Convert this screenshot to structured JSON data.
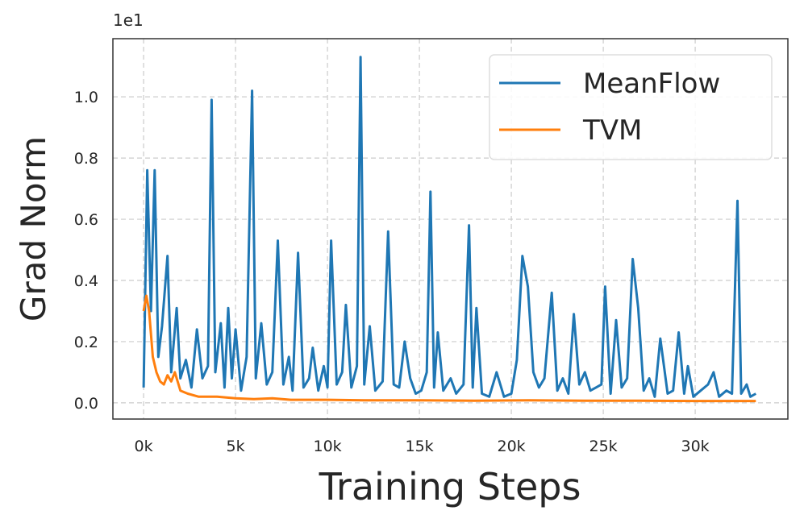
{
  "chart_data": {
    "type": "line",
    "xlabel": "Training Steps",
    "ylabel": "Grad Norm",
    "y_offset_label": "1e1",
    "xlim": [
      -1670,
      35040
    ],
    "ylim": [
      -0.053,
      1.19
    ],
    "xticks": [
      {
        "value": 0,
        "label": "0k"
      },
      {
        "value": 5000,
        "label": "5k"
      },
      {
        "value": 10000,
        "label": "10k"
      },
      {
        "value": 15000,
        "label": "15k"
      },
      {
        "value": 20000,
        "label": "20k"
      },
      {
        "value": 25000,
        "label": "25k"
      },
      {
        "value": 30000,
        "label": "30k"
      }
    ],
    "yticks": [
      {
        "value": 0,
        "label": "0.0"
      },
      {
        "value": 0.2,
        "label": "0.2"
      },
      {
        "value": 0.4,
        "label": "0.4"
      },
      {
        "value": 0.6,
        "label": "0.6"
      },
      {
        "value": 0.8,
        "label": "0.8"
      },
      {
        "value": 1.0,
        "label": "1.0"
      }
    ],
    "grid": true,
    "legend": "upper right",
    "series": [
      {
        "name": "MeanFlow",
        "color": "#1f77b4",
        "x": [
          0,
          200,
          400,
          600,
          800,
          1000,
          1300,
          1500,
          1800,
          2000,
          2300,
          2600,
          2900,
          3200,
          3500,
          3700,
          3900,
          4200,
          4400,
          4600,
          4800,
          5000,
          5300,
          5600,
          5900,
          6100,
          6400,
          6700,
          7000,
          7300,
          7600,
          7900,
          8100,
          8400,
          8700,
          9000,
          9200,
          9500,
          9800,
          10000,
          10200,
          10500,
          10800,
          11000,
          11300,
          11600,
          11800,
          12000,
          12300,
          12600,
          13000,
          13300,
          13600,
          13900,
          14200,
          14500,
          14800,
          15100,
          15400,
          15600,
          15800,
          16000,
          16300,
          16700,
          17000,
          17400,
          17700,
          17900,
          18100,
          18400,
          18800,
          19200,
          19600,
          20000,
          20300,
          20600,
          20900,
          21200,
          21500,
          21800,
          22200,
          22500,
          22800,
          23100,
          23400,
          23700,
          24000,
          24300,
          24600,
          24900,
          25100,
          25400,
          25700,
          26000,
          26300,
          26600,
          26900,
          27200,
          27500,
          27800,
          28100,
          28500,
          28800,
          29100,
          29400,
          29600,
          29900,
          30300,
          30700,
          31000,
          31300,
          31700,
          32000,
          32300,
          32500,
          32800,
          33000,
          33300
        ],
        "values": [
          0.05,
          0.76,
          0.3,
          0.76,
          0.15,
          0.25,
          0.48,
          0.1,
          0.31,
          0.08,
          0.14,
          0.05,
          0.24,
          0.08,
          0.12,
          0.99,
          0.1,
          0.26,
          0.05,
          0.31,
          0.08,
          0.24,
          0.04,
          0.15,
          1.02,
          0.08,
          0.26,
          0.06,
          0.1,
          0.53,
          0.06,
          0.15,
          0.04,
          0.49,
          0.05,
          0.08,
          0.18,
          0.04,
          0.12,
          0.05,
          0.53,
          0.06,
          0.1,
          0.32,
          0.05,
          0.12,
          1.13,
          0.06,
          0.25,
          0.04,
          0.07,
          0.56,
          0.06,
          0.05,
          0.2,
          0.08,
          0.03,
          0.04,
          0.1,
          0.69,
          0.05,
          0.23,
          0.04,
          0.08,
          0.03,
          0.06,
          0.58,
          0.05,
          0.31,
          0.03,
          0.02,
          0.1,
          0.02,
          0.03,
          0.14,
          0.48,
          0.38,
          0.1,
          0.05,
          0.08,
          0.36,
          0.04,
          0.08,
          0.03,
          0.29,
          0.06,
          0.1,
          0.04,
          0.05,
          0.06,
          0.38,
          0.03,
          0.27,
          0.05,
          0.08,
          0.47,
          0.31,
          0.04,
          0.08,
          0.02,
          0.21,
          0.03,
          0.04,
          0.23,
          0.03,
          0.12,
          0.02,
          0.04,
          0.06,
          0.1,
          0.02,
          0.04,
          0.03,
          0.66,
          0.03,
          0.06,
          0.02,
          0.03
        ]
      },
      {
        "name": "TVM",
        "color": "#ff7f0e",
        "x": [
          0,
          150,
          300,
          500,
          700,
          900,
          1100,
          1300,
          1500,
          1700,
          2000,
          2400,
          3000,
          4000,
          5000,
          6000,
          7000,
          8000,
          10000,
          12000,
          15000,
          18000,
          21000,
          24000,
          27000,
          30000,
          33300
        ],
        "values": [
          0.3,
          0.35,
          0.3,
          0.15,
          0.1,
          0.07,
          0.06,
          0.09,
          0.07,
          0.1,
          0.04,
          0.03,
          0.02,
          0.02,
          0.015,
          0.012,
          0.015,
          0.01,
          0.01,
          0.008,
          0.008,
          0.007,
          0.008,
          0.007,
          0.007,
          0.006,
          0.006
        ]
      }
    ]
  }
}
